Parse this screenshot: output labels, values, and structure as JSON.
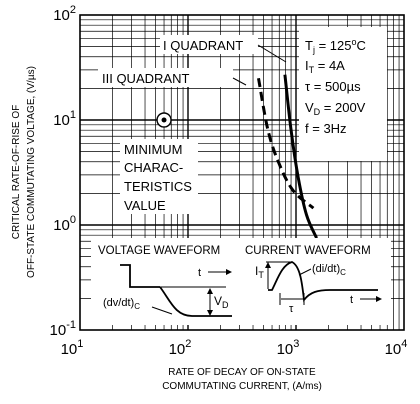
{
  "chart_data": {
    "type": "line",
    "xlabel_lines": [
      "RATE OF DECAY OF ON-STATE",
      "COMMUTATING CURRENT, (A/ms)"
    ],
    "ylabel_lines": [
      "CRITICAL RATE-OF-RISE OF",
      "OFF-STATE COMMUTATING VOLTAGE, (V/µs)"
    ],
    "xscale": "log",
    "yscale": "log",
    "xlim": [
      10,
      10000
    ],
    "ylim": [
      0.1,
      100
    ],
    "grid": true,
    "x_ticks": [
      {
        "value": 10,
        "base": "10",
        "exp": "1"
      },
      {
        "value": 100,
        "base": "10",
        "exp": "2"
      },
      {
        "value": 1000,
        "base": "10",
        "exp": "3"
      },
      {
        "value": 10000,
        "base": "10",
        "exp": "4"
      }
    ],
    "y_ticks": [
      {
        "value": 0.1,
        "base": "10",
        "exp": "-1"
      },
      {
        "value": 1,
        "base": "10",
        "exp": "0"
      },
      {
        "value": 10,
        "base": "10",
        "exp": "1"
      },
      {
        "value": 100,
        "base": "10",
        "exp": "2"
      }
    ],
    "series": [
      {
        "name": "I QUADRANT",
        "style": "solid",
        "x": [
          790,
          900,
          1050,
          1250,
          1550
        ],
        "y": [
          27,
          8,
          2.8,
          1.25,
          0.75
        ]
      },
      {
        "name": "III QUADRANT",
        "style": "dashed",
        "x": [
          450,
          550,
          700,
          950,
          1450
        ],
        "y": [
          25,
          8,
          3.8,
          2.1,
          1.45
        ]
      }
    ],
    "minimum_point": {
      "x": 60,
      "y": 10
    },
    "annotations": {
      "min_value_lines": [
        "MINIMUM",
        "CHARAC-",
        "TERISTICS",
        "VALUE"
      ],
      "conditions": [
        {
          "main": "T",
          "sub": "j",
          "rest": " = 125",
          "sup": "o",
          "tail": "C"
        },
        {
          "main": "I",
          "sub": "T",
          "rest": " = 4A",
          "sup": "",
          "tail": ""
        },
        {
          "main": "τ",
          "sub": "",
          "rest": " = 500µs",
          "sup": "",
          "tail": ""
        },
        {
          "main": "V",
          "sub": "D",
          "rest": " = 200V",
          "sup": "",
          "tail": ""
        },
        {
          "main": "f",
          "sub": "",
          "rest": " = 3Hz",
          "sup": "",
          "tail": ""
        }
      ]
    },
    "inset": {
      "voltage_title": "VOLTAGE WAVEFORM",
      "current_title": "CURRENT WAVEFORM",
      "t_label": "t",
      "vd_main": "V",
      "vd_sub": "D",
      "dvdt_main": "(dv/dt)",
      "dvdt_sub": "C",
      "it_main": "I",
      "it_sub": "T",
      "didt_main": "(di/dt)",
      "didt_sub": "C",
      "tau": "τ"
    }
  }
}
